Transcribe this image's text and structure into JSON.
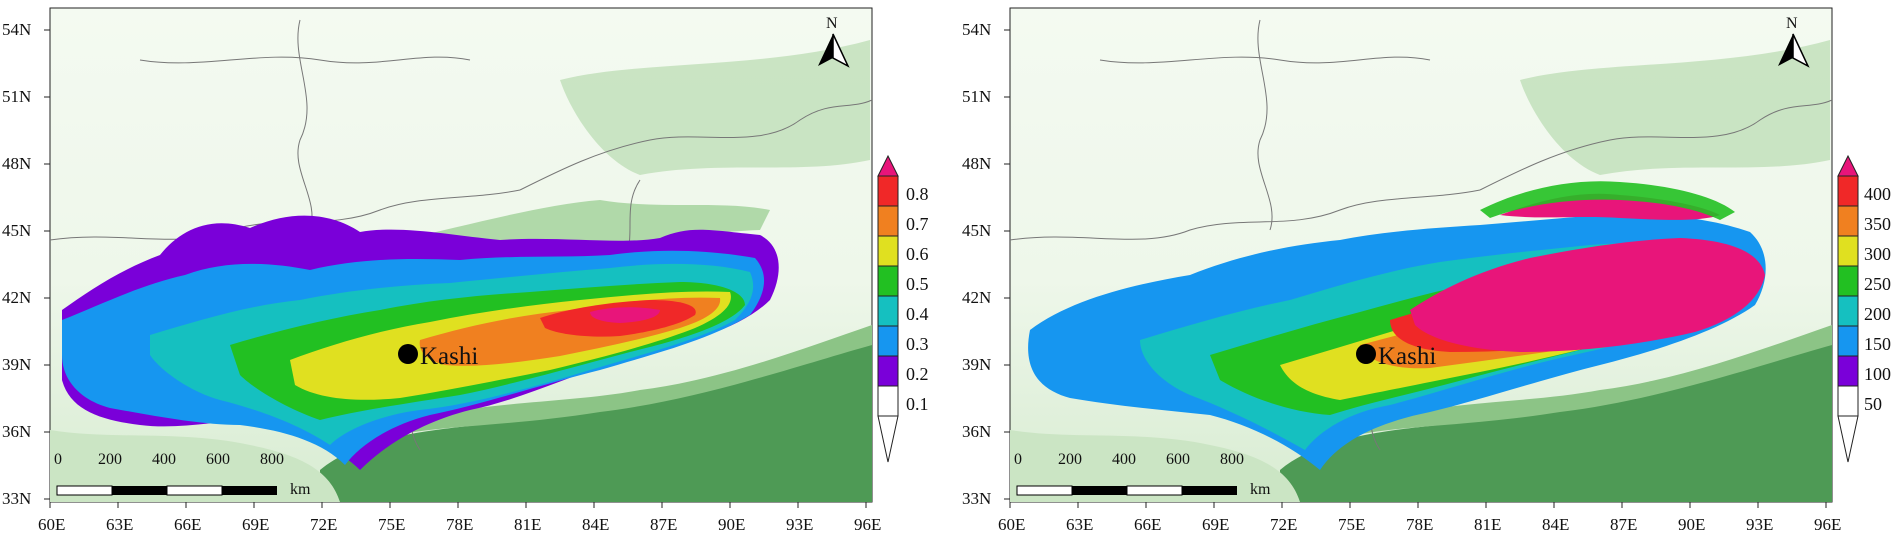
{
  "panels": [
    {
      "id": "left",
      "lat_labels": [
        "54N",
        "51N",
        "48N",
        "45N",
        "42N",
        "39N",
        "36N",
        "33N"
      ],
      "lon_labels": [
        "60E",
        "63E",
        "66E",
        "69E",
        "72E",
        "75E",
        "78E",
        "81E",
        "84E",
        "87E",
        "90E",
        "93E",
        "96E"
      ],
      "colorbar": [
        "0.8",
        "0.7",
        "0.6",
        "0.5",
        "0.4",
        "0.3",
        "0.2",
        "0.1"
      ],
      "city": "Kashi",
      "north": "N",
      "scale_ticks": [
        "0",
        "200",
        "400",
        "600",
        "800"
      ],
      "scale_unit": "km"
    },
    {
      "id": "right",
      "lat_labels": [
        "54N",
        "51N",
        "48N",
        "45N",
        "42N",
        "39N",
        "36N",
        "33N"
      ],
      "lon_labels": [
        "60E",
        "63E",
        "66E",
        "69E",
        "72E",
        "75E",
        "78E",
        "81E",
        "84E",
        "87E",
        "90E",
        "93E",
        "96E"
      ],
      "colorbar": [
        "400",
        "350",
        "300",
        "250",
        "200",
        "150",
        "100",
        "50"
      ],
      "city": "Kashi",
      "north": "N",
      "scale_ticks": [
        "0",
        "200",
        "400",
        "600",
        "800"
      ],
      "scale_unit": "km"
    }
  ],
  "colors": {
    "scale": [
      "#7a00d9",
      "#1696f0",
      "#15c0c0",
      "#22c022",
      "#e0e020",
      "#f08020",
      "#f02828",
      "#e8157a"
    ],
    "terrain_light": "#e4f2e0",
    "terrain_mid": "#b7dbb1",
    "terrain_dark": "#4f9a56"
  }
}
